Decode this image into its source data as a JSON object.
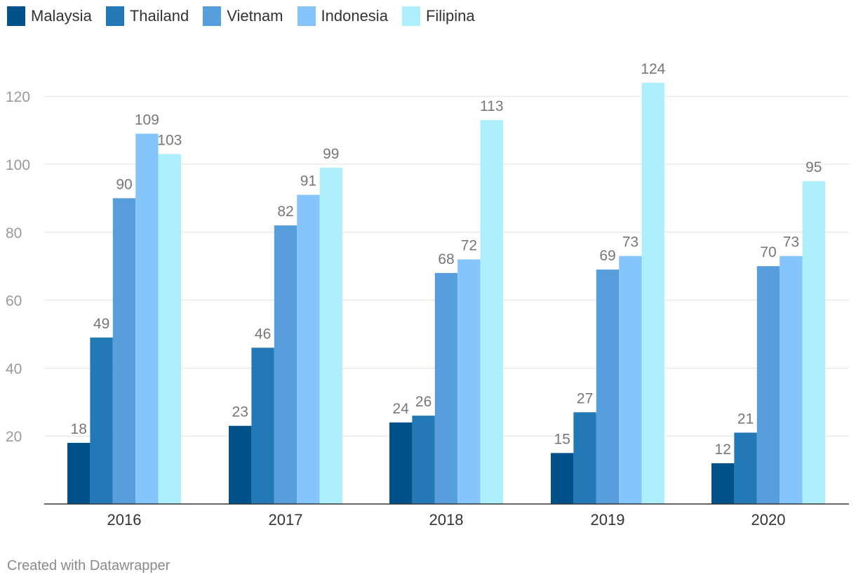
{
  "chart_data": {
    "type": "bar",
    "categories": [
      "2016",
      "2017",
      "2018",
      "2019",
      "2020"
    ],
    "series": [
      {
        "name": "Malaysia",
        "color": "#00508a",
        "values": [
          18,
          23,
          24,
          15,
          12
        ]
      },
      {
        "name": "Thailand",
        "color": "#2279b5",
        "values": [
          49,
          46,
          26,
          27,
          21
        ]
      },
      {
        "name": "Vietnam",
        "color": "#579fdc",
        "values": [
          90,
          82,
          68,
          69,
          70
        ]
      },
      {
        "name": "Indonesia",
        "color": "#85c5fb",
        "values": [
          109,
          91,
          72,
          73,
          73
        ]
      },
      {
        "name": "Filipina",
        "color": "#adf0fc",
        "values": [
          103,
          99,
          113,
          124,
          95
        ]
      }
    ],
    "y_ticks": [
      20,
      40,
      60,
      80,
      100,
      120
    ],
    "ylim": [
      0,
      124
    ],
    "grid": true,
    "legend": "top-left"
  },
  "credit": "Created with Datawrapper"
}
